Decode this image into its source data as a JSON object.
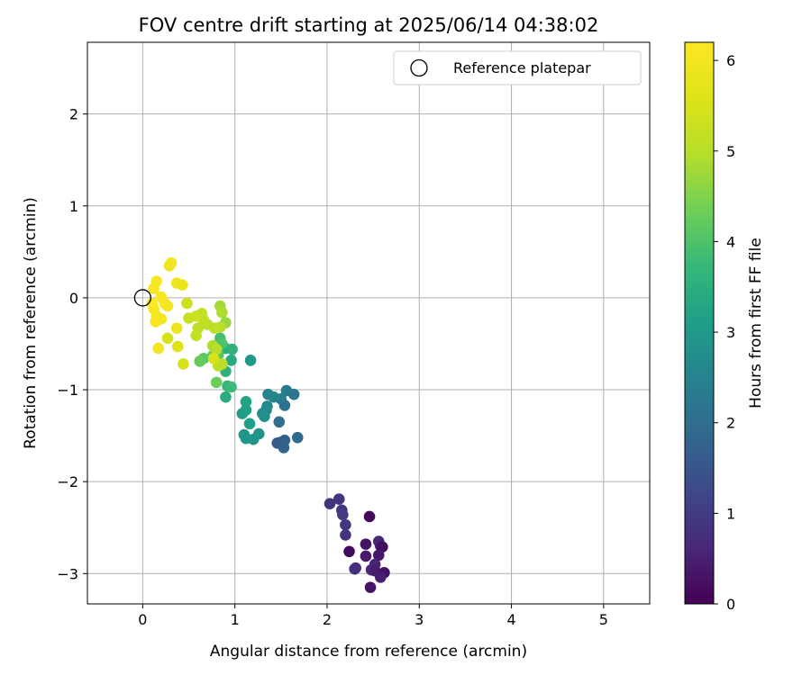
{
  "chart_data": {
    "type": "scatter",
    "title": "FOV centre drift starting at 2025/06/14 04:38:02",
    "xlabel": "Angular distance from reference (arcmin)",
    "ylabel": "Rotation from reference (arcmin)",
    "xlim": [
      -0.6,
      5.5
    ],
    "ylim": [
      -3.33,
      2.78
    ],
    "xticks": [
      0,
      1,
      2,
      3,
      4,
      5
    ],
    "yticks": [
      -3,
      -2,
      -1,
      0,
      1,
      2
    ],
    "grid": true,
    "legend": {
      "placement": "top-right",
      "entries": [
        {
          "label": "Reference platepar",
          "marker": "open-circle"
        }
      ]
    },
    "reference_point": {
      "x": 0,
      "y": 0
    },
    "colorbar": {
      "label": "Hours from first FF file",
      "colormap": "viridis",
      "min": 0,
      "max": 6.2,
      "ticks": [
        0,
        1,
        2,
        3,
        4,
        5,
        6
      ]
    },
    "series": [
      {
        "hours": 0.0,
        "points": [
          [
            2.46,
            -2.38
          ],
          [
            2.03,
            -2.24
          ],
          [
            2.13,
            -2.19
          ],
          [
            2.16,
            -2.31
          ],
          [
            2.17,
            -2.36
          ],
          [
            2.2,
            -2.47
          ],
          [
            2.2,
            -2.58
          ],
          [
            2.24,
            -2.76
          ],
          [
            2.42,
            -2.68
          ],
          [
            2.42,
            -2.81
          ],
          [
            2.31,
            -2.94
          ],
          [
            2.3,
            -2.95
          ],
          [
            2.56,
            -2.65
          ],
          [
            2.58,
            -2.7
          ],
          [
            2.6,
            -2.71
          ],
          [
            2.56,
            -2.8
          ],
          [
            2.52,
            -2.9
          ],
          [
            2.48,
            -2.96
          ],
          [
            2.52,
            -2.97
          ],
          [
            2.62,
            -2.99
          ],
          [
            2.58,
            -3.04
          ],
          [
            2.47,
            -3.15
          ]
        ],
        "hour_values": [
          0.1,
          0.8,
          0.85,
          0.9,
          0.95,
          0.9,
          0.8,
          0.15,
          0.3,
          0.4,
          0.7,
          0.75,
          0.6,
          0.5,
          0.2,
          0.35,
          0.55,
          0.65,
          0.45,
          0.25,
          0.5,
          0.3
        ]
      },
      {
        "hours": 2.0,
        "points": [
          [
            1.56,
            -1.01
          ],
          [
            1.64,
            -1.05
          ],
          [
            1.5,
            -1.1
          ],
          [
            1.54,
            -1.17
          ],
          [
            1.48,
            -1.35
          ],
          [
            1.68,
            -1.52
          ],
          [
            1.54,
            -1.55
          ],
          [
            1.5,
            -1.57
          ],
          [
            1.46,
            -1.58
          ],
          [
            1.53,
            -1.63
          ],
          [
            1.34,
            -1.22
          ],
          [
            1.3,
            -1.26
          ],
          [
            1.35,
            -1.18
          ],
          [
            1.36,
            -1.05
          ],
          [
            1.42,
            -1.08
          ],
          [
            1.32,
            -1.29
          ],
          [
            1.2,
            -1.54
          ],
          [
            1.12,
            -1.53
          ],
          [
            1.1,
            -1.49
          ],
          [
            1.26,
            -1.48
          ],
          [
            1.16,
            -1.37
          ],
          [
            1.08,
            -1.26
          ],
          [
            1.12,
            -1.22
          ],
          [
            1.12,
            -1.13
          ],
          [
            1.17,
            -0.68
          ]
        ],
        "hour_values": [
          2.3,
          2.2,
          2.4,
          2.1,
          2.0,
          1.9,
          1.8,
          1.7,
          1.6,
          1.75,
          2.6,
          2.7,
          2.65,
          2.5,
          2.55,
          2.8,
          2.9,
          3.0,
          2.95,
          2.85,
          3.1,
          3.05,
          3.15,
          3.2,
          3.0
        ]
      },
      {
        "hours": 4.0,
        "points": [
          [
            0.9,
            -0.55
          ],
          [
            0.97,
            -0.56
          ],
          [
            0.96,
            -0.68
          ],
          [
            0.9,
            -0.8
          ],
          [
            0.92,
            -0.96
          ],
          [
            0.96,
            -0.97
          ],
          [
            0.9,
            -1.08
          ],
          [
            0.84,
            -0.44
          ],
          [
            0.86,
            -0.5
          ],
          [
            0.82,
            -0.62
          ],
          [
            0.76,
            -0.63
          ],
          [
            0.8,
            -0.92
          ],
          [
            0.66,
            -0.66
          ],
          [
            0.62,
            -0.69
          ]
        ],
        "hour_values": [
          3.5,
          3.6,
          3.4,
          3.55,
          3.7,
          3.8,
          3.45,
          3.9,
          4.0,
          4.1,
          4.2,
          4.3,
          4.15,
          4.25
        ]
      },
      {
        "hours": 5.0,
        "points": [
          [
            0.84,
            -0.09
          ],
          [
            0.86,
            -0.16
          ],
          [
            0.9,
            -0.27
          ],
          [
            0.84,
            -0.32
          ],
          [
            0.78,
            -0.33
          ],
          [
            0.7,
            -0.29
          ],
          [
            0.64,
            -0.17
          ],
          [
            0.66,
            -0.24
          ],
          [
            0.58,
            -0.2
          ],
          [
            0.5,
            -0.22
          ],
          [
            0.48,
            -0.06
          ],
          [
            0.6,
            -0.33
          ],
          [
            0.58,
            -0.41
          ],
          [
            0.76,
            -0.52
          ],
          [
            0.8,
            -0.56
          ],
          [
            0.82,
            -0.74
          ],
          [
            0.86,
            -0.72
          ],
          [
            0.77,
            -0.66
          ],
          [
            0.44,
            -0.72
          ],
          [
            0.38,
            -0.53
          ],
          [
            0.27,
            -0.44
          ]
        ],
        "hour_values": [
          4.8,
          4.9,
          4.7,
          5.0,
          5.1,
          5.05,
          5.2,
          5.15,
          5.3,
          5.25,
          5.35,
          5.1,
          5.2,
          4.9,
          5.0,
          5.1,
          5.05,
          5.5,
          5.45,
          5.6,
          5.5
        ]
      },
      {
        "hours": 6.0,
        "points": [
          [
            0.29,
            0.35
          ],
          [
            0.31,
            0.38
          ],
          [
            0.37,
            0.16
          ],
          [
            0.43,
            0.14
          ],
          [
            0.15,
            0.18
          ],
          [
            0.12,
            0.1
          ],
          [
            0.2,
            0.01
          ],
          [
            0.24,
            -0.06
          ],
          [
            0.27,
            -0.09
          ],
          [
            0.1,
            -0.06
          ],
          [
            0.12,
            -0.12
          ],
          [
            0.15,
            -0.2
          ],
          [
            0.2,
            -0.23
          ],
          [
            0.14,
            -0.26
          ],
          [
            0.37,
            -0.33
          ],
          [
            0.17,
            -0.55
          ]
        ],
        "hour_values": [
          5.9,
          6.0,
          5.95,
          5.85,
          6.1,
          6.15,
          6.1,
          6.05,
          6.0,
          6.2,
          6.15,
          6.1,
          6.05,
          6.1,
          5.9,
          6.0
        ]
      }
    ]
  },
  "colors": {
    "reference_marker": "#000000",
    "grid": "#b0b0b0"
  }
}
